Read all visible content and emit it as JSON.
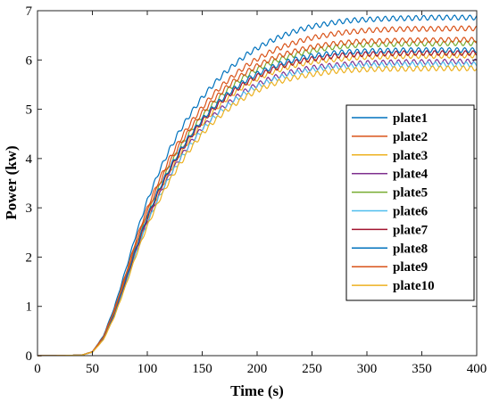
{
  "chart_data": {
    "type": "line",
    "title": "",
    "xlabel": "Time (s)",
    "ylabel": "Power (kw)",
    "xlim": [
      0,
      400
    ],
    "ylim": [
      0,
      7
    ],
    "xticks": [
      0,
      50,
      100,
      150,
      200,
      250,
      300,
      350,
      400
    ],
    "yticks": [
      0,
      1,
      2,
      3,
      4,
      5,
      6,
      7
    ],
    "grid": false,
    "legend_position": "right",
    "x": [
      0,
      40,
      50,
      60,
      70,
      80,
      90,
      100,
      110,
      120,
      130,
      140,
      150,
      160,
      170,
      180,
      190,
      200,
      210,
      220,
      230,
      240,
      250,
      260,
      270,
      280,
      290,
      300,
      320,
      340,
      360,
      380,
      400
    ],
    "series": [
      {
        "name": "plate1",
        "color": "#0072BD",
        "values": [
          0,
          0.01,
          0.08,
          0.4,
          0.98,
          1.72,
          2.48,
          3.15,
          3.7,
          4.17,
          4.58,
          4.93,
          5.24,
          5.5,
          5.73,
          5.92,
          6.1,
          6.24,
          6.36,
          6.46,
          6.55,
          6.62,
          6.68,
          6.72,
          6.76,
          6.79,
          6.81,
          6.82,
          6.84,
          6.85,
          6.86,
          6.86,
          6.86
        ]
      },
      {
        "name": "plate2",
        "color": "#D95319",
        "values": [
          0,
          0.01,
          0.08,
          0.38,
          0.93,
          1.63,
          2.36,
          3.0,
          3.53,
          3.99,
          4.39,
          4.74,
          5.04,
          5.3,
          5.52,
          5.71,
          5.88,
          6.02,
          6.14,
          6.24,
          6.32,
          6.39,
          6.45,
          6.49,
          6.53,
          6.56,
          6.58,
          6.6,
          6.62,
          6.63,
          6.63,
          6.64,
          6.64
        ]
      },
      {
        "name": "plate3",
        "color": "#EDB120",
        "values": [
          0,
          0.01,
          0.07,
          0.34,
          0.84,
          1.48,
          2.16,
          2.77,
          3.28,
          3.72,
          4.1,
          4.43,
          4.71,
          4.96,
          5.17,
          5.35,
          5.5,
          5.62,
          5.72,
          5.8,
          5.87,
          5.92,
          5.96,
          5.99,
          6.01,
          6.03,
          6.05,
          6.06,
          6.07,
          6.08,
          6.08,
          6.09,
          6.09
        ]
      },
      {
        "name": "plate4",
        "color": "#7E2F8E",
        "values": [
          0,
          0.01,
          0.07,
          0.33,
          0.82,
          1.45,
          2.12,
          2.72,
          3.22,
          3.65,
          4.02,
          4.34,
          4.62,
          4.86,
          5.06,
          5.23,
          5.38,
          5.5,
          5.6,
          5.68,
          5.75,
          5.8,
          5.84,
          5.87,
          5.89,
          5.91,
          5.93,
          5.94,
          5.95,
          5.96,
          5.96,
          5.97,
          5.97
        ]
      },
      {
        "name": "plate5",
        "color": "#77AC30",
        "values": [
          0,
          0.01,
          0.08,
          0.36,
          0.88,
          1.55,
          2.25,
          2.87,
          3.39,
          3.84,
          4.23,
          4.57,
          4.86,
          5.11,
          5.33,
          5.52,
          5.68,
          5.81,
          5.92,
          6.01,
          6.08,
          6.14,
          6.19,
          6.23,
          6.26,
          6.28,
          6.3,
          6.31,
          6.32,
          6.33,
          6.33,
          6.34,
          6.34
        ]
      },
      {
        "name": "plate6",
        "color": "#4DBEEE",
        "values": [
          0,
          0.01,
          0.07,
          0.33,
          0.81,
          1.43,
          2.09,
          2.68,
          3.18,
          3.61,
          3.98,
          4.3,
          4.58,
          4.82,
          5.02,
          5.19,
          5.34,
          5.46,
          5.56,
          5.64,
          5.71,
          5.76,
          5.8,
          5.83,
          5.85,
          5.87,
          5.88,
          5.89,
          5.9,
          5.91,
          5.91,
          5.91,
          5.91
        ]
      },
      {
        "name": "plate7",
        "color": "#A2142F",
        "values": [
          0,
          0.01,
          0.07,
          0.34,
          0.84,
          1.49,
          2.18,
          2.79,
          3.31,
          3.75,
          4.13,
          4.46,
          4.75,
          5.0,
          5.21,
          5.39,
          5.54,
          5.67,
          5.77,
          5.86,
          5.93,
          5.98,
          6.02,
          6.05,
          6.08,
          6.1,
          6.11,
          6.12,
          6.13,
          6.14,
          6.14,
          6.14,
          6.14
        ]
      },
      {
        "name": "plate8",
        "color": "#0072BD",
        "values": [
          0,
          0.01,
          0.07,
          0.35,
          0.86,
          1.52,
          2.21,
          2.83,
          3.35,
          3.79,
          4.17,
          4.5,
          4.79,
          5.04,
          5.25,
          5.43,
          5.59,
          5.72,
          5.82,
          5.91,
          5.98,
          6.04,
          6.08,
          6.11,
          6.14,
          6.16,
          6.17,
          6.18,
          6.19,
          6.2,
          6.2,
          6.2,
          6.2
        ]
      },
      {
        "name": "plate9",
        "color": "#D95319",
        "values": [
          0,
          0.01,
          0.08,
          0.37,
          0.9,
          1.58,
          2.29,
          2.92,
          3.45,
          3.9,
          4.29,
          4.63,
          4.93,
          5.18,
          5.4,
          5.59,
          5.75,
          5.88,
          5.99,
          6.08,
          6.15,
          6.21,
          6.26,
          6.3,
          6.33,
          6.35,
          6.37,
          6.38,
          6.39,
          6.4,
          6.4,
          6.41,
          6.41
        ]
      },
      {
        "name": "plate10",
        "color": "#EDB120",
        "values": [
          0,
          0.01,
          0.07,
          0.32,
          0.79,
          1.4,
          2.05,
          2.63,
          3.12,
          3.54,
          3.9,
          4.22,
          4.5,
          4.74,
          4.94,
          5.11,
          5.26,
          5.38,
          5.48,
          5.56,
          5.62,
          5.67,
          5.71,
          5.74,
          5.77,
          5.79,
          5.8,
          5.81,
          5.82,
          5.82,
          5.83,
          5.83,
          5.83
        ]
      }
    ]
  }
}
